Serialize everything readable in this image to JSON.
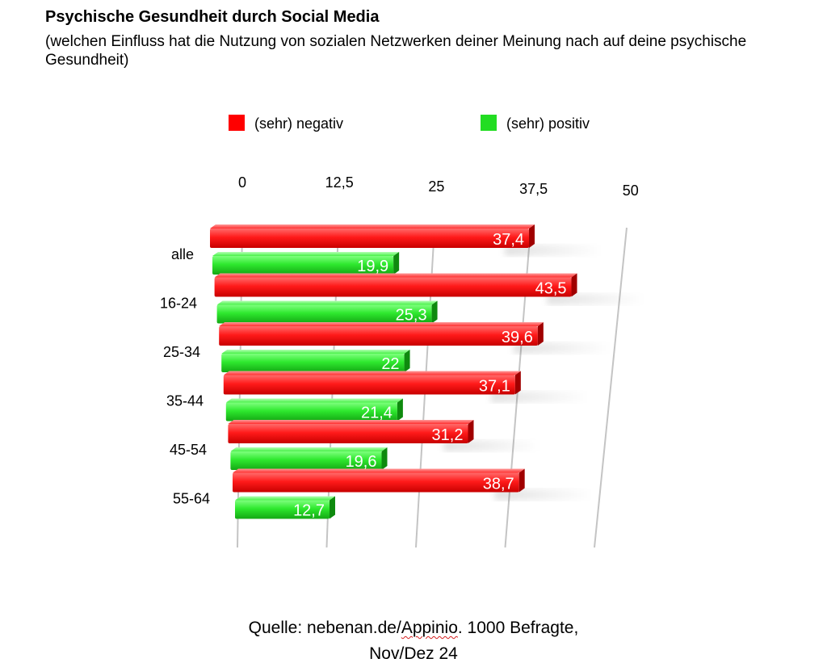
{
  "title": "Psychische Gesundheit durch Social Media",
  "subtitle": "(welchen Einfluss hat die Nutzung von sozialen Netzwerken deiner Meinung nach auf deine psychische Gesundheit)",
  "source": {
    "prefix": "Quelle: nebenan.de/",
    "underlined": "Appinio",
    "suffix": ". 1000 Befragte,",
    "line2": "Nov/Dez 24"
  },
  "chart_data": {
    "type": "bar",
    "orientation": "horizontal",
    "title": "Psychische Gesundheit durch Social Media",
    "categories": [
      "alle",
      "16-24",
      "25-34",
      "35-44",
      "45-54",
      "55-64"
    ],
    "series": [
      {
        "name": "(sehr) negativ",
        "color": "#ff0000",
        "values": [
          37.4,
          43.5,
          39.6,
          37.1,
          31.2,
          38.7
        ]
      },
      {
        "name": "(sehr) positiv",
        "color": "#22dd22",
        "values": [
          19.9,
          25.3,
          22,
          21.4,
          19.6,
          12.7
        ]
      }
    ],
    "value_labels": {
      "(sehr) negativ": [
        "37,4",
        "43,5",
        "39,6",
        "37,1",
        "31,2",
        "38,7"
      ],
      "(sehr) positiv": [
        "19,9",
        "25,3",
        "22",
        "21,4",
        "19,6",
        "12,7"
      ]
    },
    "xlim": [
      0,
      50
    ],
    "xticks": [
      0,
      12.5,
      25,
      37.5,
      50
    ],
    "xtick_labels": [
      "0",
      "12,5",
      "25",
      "37,5",
      "50"
    ],
    "grid": true,
    "legend_position": "top",
    "style": "3d-perspective"
  }
}
